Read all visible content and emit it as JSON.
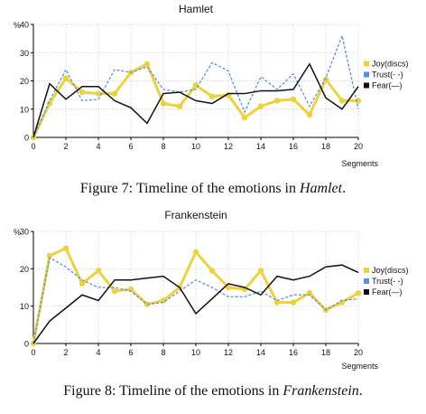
{
  "figures": [
    {
      "caption_prefix": "Figure 7: Timeline of the emotions in ",
      "caption_title": "Hamlet",
      "caption_suffix": "."
    },
    {
      "caption_prefix": "Figure 8: Timeline of the emotions in ",
      "caption_title": "Frankenstein",
      "caption_suffix": "."
    }
  ],
  "chart_data": [
    {
      "type": "line",
      "title": "Hamlet",
      "ylabel": "%",
      "xlabel": "Segments",
      "x": [
        0,
        1,
        2,
        3,
        4,
        5,
        6,
        7,
        8,
        9,
        10,
        11,
        12,
        13,
        14,
        15,
        16,
        17,
        18,
        19,
        20
      ],
      "xticks": [
        0,
        2,
        4,
        6,
        8,
        10,
        12,
        14,
        16,
        18,
        20
      ],
      "ylim": [
        0,
        40
      ],
      "yticks": [
        0,
        10,
        20,
        30,
        40
      ],
      "grid": true,
      "legend_position": "right",
      "series": [
        {
          "name": "Joy(discs)",
          "color": "#ecd23b",
          "style": "thick-markers",
          "values": [
            0,
            12,
            21,
            16,
            15.5,
            15.5,
            23,
            26,
            12,
            11,
            18.5,
            14.5,
            15,
            7,
            11,
            13,
            13.5,
            8,
            20.5,
            13,
            13
          ]
        },
        {
          "name": "Trust(- -)",
          "color": "#5b8ee6",
          "style": "dashed",
          "values": [
            0,
            13,
            24,
            13,
            13.5,
            24,
            23,
            25,
            17,
            16,
            17,
            26.5,
            23.5,
            9,
            21.5,
            17,
            22.5,
            11,
            21,
            36,
            10
          ]
        },
        {
          "name": "Fear(—)",
          "color": "#111111",
          "style": "solid",
          "values": [
            0,
            19,
            13.5,
            18,
            18,
            13,
            10.5,
            5,
            15.5,
            16,
            13,
            12,
            15.5,
            15.5,
            16.5,
            16.5,
            17,
            26,
            14,
            10,
            18
          ]
        }
      ]
    },
    {
      "type": "line",
      "title": "Frankenstein",
      "ylabel": "%",
      "xlabel": "Segments",
      "x": [
        0,
        1,
        2,
        3,
        4,
        5,
        6,
        7,
        8,
        9,
        10,
        11,
        12,
        13,
        14,
        15,
        16,
        17,
        18,
        19,
        20
      ],
      "xticks": [
        0,
        2,
        4,
        6,
        8,
        10,
        12,
        14,
        16,
        18,
        20
      ],
      "ylim": [
        0,
        30
      ],
      "yticks": [
        0,
        10,
        20,
        30
      ],
      "grid": true,
      "legend_position": "right",
      "series": [
        {
          "name": "Joy(discs)",
          "color": "#ecd23b",
          "style": "thick-markers",
          "values": [
            0,
            23.5,
            25.5,
            16,
            19.5,
            14,
            14.5,
            10.5,
            11.5,
            15,
            24.5,
            19.5,
            15,
            14.5,
            19.5,
            11,
            11,
            13.5,
            9,
            11,
            13.5
          ]
        },
        {
          "name": "Trust(- -)",
          "color": "#5b8ee6",
          "style": "dashed",
          "values": [
            0,
            23,
            20.5,
            17,
            15,
            15,
            14,
            10.5,
            11,
            14,
            17,
            15,
            12.5,
            12.5,
            14,
            11.5,
            13,
            13,
            9,
            11.5,
            12
          ]
        },
        {
          "name": "Fear(—)",
          "color": "#111111",
          "style": "solid",
          "values": [
            0,
            6,
            9.5,
            13,
            11.5,
            17,
            17,
            17.5,
            18,
            15,
            8,
            12,
            16,
            15,
            13,
            18,
            17,
            18,
            20.5,
            21,
            19
          ]
        }
      ]
    }
  ]
}
